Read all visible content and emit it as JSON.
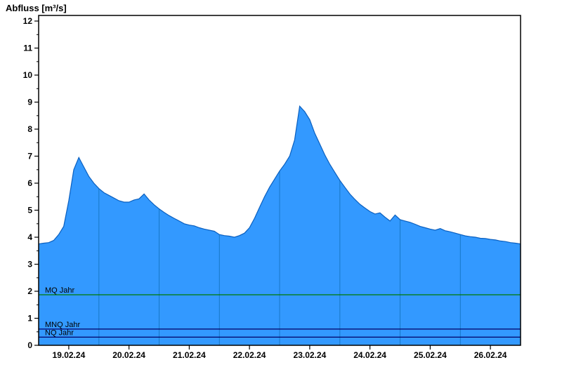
{
  "chart_data": {
    "type": "area",
    "title": "Abfluss [m³/s]",
    "ylabel": "Abfluss [m³/s]",
    "xlabel": "",
    "ylim": [
      0,
      12
    ],
    "y_major_ticks": [
      0,
      1,
      2,
      3,
      4,
      5,
      6,
      7,
      8,
      9,
      10,
      11,
      12
    ],
    "x_tick_labels": [
      "19.02.24",
      "20.02.24",
      "21.02.24",
      "22.02.24",
      "23.02.24",
      "24.02.24",
      "25.02.24",
      "26.02.24"
    ],
    "x_tick_positions_hours": [
      12,
      36,
      60,
      84,
      108,
      132,
      156,
      180
    ],
    "x_range_hours": 192,
    "step_hours": 2,
    "grid": {
      "vertical_day_lines": true,
      "horizontal": false
    },
    "legend": "none",
    "series": [
      {
        "name": "Abfluss",
        "values": [
          3.75,
          3.78,
          3.8,
          3.88,
          4.1,
          4.4,
          5.35,
          6.5,
          6.95,
          6.6,
          6.25,
          6.0,
          5.8,
          5.65,
          5.55,
          5.45,
          5.35,
          5.3,
          5.3,
          5.38,
          5.42,
          5.6,
          5.38,
          5.2,
          5.05,
          4.92,
          4.8,
          4.7,
          4.6,
          4.5,
          4.45,
          4.42,
          4.35,
          4.3,
          4.26,
          4.22,
          4.1,
          4.06,
          4.04,
          4.0,
          4.06,
          4.15,
          4.35,
          4.7,
          5.1,
          5.5,
          5.85,
          6.15,
          6.45,
          6.7,
          7.0,
          7.6,
          8.85,
          8.65,
          8.35,
          7.85,
          7.45,
          7.05,
          6.7,
          6.4,
          6.1,
          5.85,
          5.6,
          5.4,
          5.22,
          5.08,
          4.95,
          4.86,
          4.9,
          4.74,
          4.6,
          4.82,
          4.65,
          4.6,
          4.55,
          4.48,
          4.4,
          4.35,
          4.3,
          4.26,
          4.32,
          4.24,
          4.2,
          4.15,
          4.1,
          4.05,
          4.02,
          4.0,
          3.96,
          3.95,
          3.92,
          3.9,
          3.86,
          3.84,
          3.8,
          3.78,
          3.75
        ]
      }
    ],
    "reference_lines": [
      {
        "label": "MQ Jahr",
        "value": 1.87,
        "color": "#007a00"
      },
      {
        "label": "MNQ Jahr",
        "value": 0.6,
        "color": "#000066"
      },
      {
        "label": "NQ Jahr",
        "value": 0.3,
        "color": "#000066"
      }
    ],
    "colors": {
      "fill": "#3399ff",
      "line": "#0a5fbf",
      "day_grid": "#1878c8",
      "axis": "#000000",
      "background": "#ffffff"
    }
  }
}
